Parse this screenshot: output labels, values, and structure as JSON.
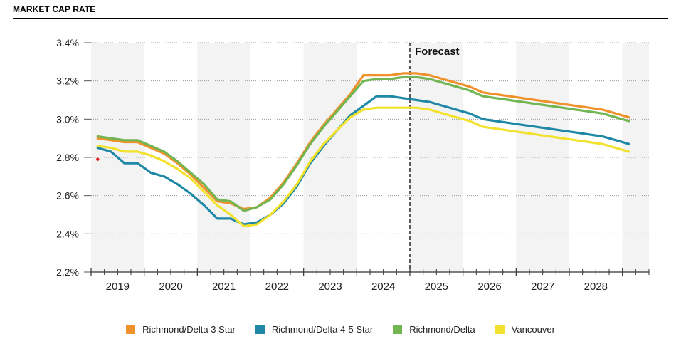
{
  "header": {
    "title": "MARKET CAP RATE"
  },
  "chart_data": {
    "type": "line",
    "title": "MARKET CAP RATE",
    "annotation": "Forecast",
    "ylim": [
      2.2,
      3.4
    ],
    "yticks": [
      2.2,
      2.4,
      2.6,
      2.8,
      3.0,
      3.2,
      3.4
    ],
    "ytick_labels": [
      "2.2%",
      "2.4%",
      "2.6%",
      "2.8%",
      "3.0%",
      "3.2%",
      "3.4%"
    ],
    "xlim": [
      2018.5,
      2029.0
    ],
    "years": [
      "2019",
      "2020",
      "2021",
      "2022",
      "2023",
      "2024",
      "2025",
      "2026",
      "2027",
      "2028"
    ],
    "forecast_x": 2024.5,
    "series": [
      {
        "name": "Richmond/Delta 3 Star",
        "color": "#f0912b",
        "x": [
          2018.625,
          2018.875,
          2019.125,
          2019.375,
          2019.625,
          2019.875,
          2020.125,
          2020.375,
          2020.625,
          2020.875,
          2021.125,
          2021.375,
          2021.625,
          2021.875,
          2022.125,
          2022.375,
          2022.625,
          2022.875,
          2023.125,
          2023.375,
          2023.625,
          2023.875,
          2024.125,
          2024.375,
          2024.625,
          2024.875,
          2025.125,
          2025.375,
          2025.625,
          2025.875,
          2026.125,
          2026.375,
          2026.625,
          2026.875,
          2027.125,
          2027.375,
          2027.625,
          2027.875,
          2028.125,
          2028.375,
          2028.625
        ],
        "y": [
          2.9,
          2.89,
          2.88,
          2.88,
          2.85,
          2.82,
          2.77,
          2.71,
          2.64,
          2.57,
          2.56,
          2.53,
          2.54,
          2.59,
          2.67,
          2.77,
          2.88,
          2.97,
          3.05,
          3.13,
          3.23,
          3.23,
          3.23,
          3.24,
          3.24,
          3.23,
          3.21,
          3.19,
          3.17,
          3.14,
          3.13,
          3.12,
          3.11,
          3.1,
          3.09,
          3.08,
          3.07,
          3.06,
          3.05,
          3.03,
          3.01
        ]
      },
      {
        "name": "Richmond/Delta 4-5 Star",
        "color": "#1f88a6",
        "x": [
          2018.625,
          2018.875,
          2019.125,
          2019.375,
          2019.625,
          2019.875,
          2020.125,
          2020.375,
          2020.625,
          2020.875,
          2021.125,
          2021.375,
          2021.625,
          2021.875,
          2022.125,
          2022.375,
          2022.625,
          2022.875,
          2023.125,
          2023.375,
          2023.625,
          2023.875,
          2024.125,
          2024.375,
          2024.625,
          2024.875,
          2025.125,
          2025.375,
          2025.625,
          2025.875,
          2026.125,
          2026.375,
          2026.625,
          2026.875,
          2027.125,
          2027.375,
          2027.625,
          2027.875,
          2028.125,
          2028.375,
          2028.625
        ],
        "y": [
          2.85,
          2.83,
          2.77,
          2.77,
          2.72,
          2.7,
          2.66,
          2.61,
          2.55,
          2.48,
          2.48,
          2.45,
          2.46,
          2.5,
          2.56,
          2.65,
          2.77,
          2.86,
          2.94,
          3.02,
          3.07,
          3.12,
          3.12,
          3.11,
          3.1,
          3.09,
          3.07,
          3.05,
          3.03,
          3.0,
          2.99,
          2.98,
          2.97,
          2.96,
          2.95,
          2.94,
          2.93,
          2.92,
          2.91,
          2.89,
          2.87
        ]
      },
      {
        "name": "Richmond/Delta",
        "color": "#72b553",
        "x": [
          2018.625,
          2018.875,
          2019.125,
          2019.375,
          2019.625,
          2019.875,
          2020.125,
          2020.375,
          2020.625,
          2020.875,
          2021.125,
          2021.375,
          2021.625,
          2021.875,
          2022.125,
          2022.375,
          2022.625,
          2022.875,
          2023.125,
          2023.375,
          2023.625,
          2023.875,
          2024.125,
          2024.375,
          2024.625,
          2024.875,
          2025.125,
          2025.375,
          2025.625,
          2025.875,
          2026.125,
          2026.375,
          2026.625,
          2026.875,
          2027.125,
          2027.375,
          2027.625,
          2027.875,
          2028.125,
          2028.375,
          2028.625
        ],
        "y": [
          2.91,
          2.9,
          2.89,
          2.89,
          2.86,
          2.83,
          2.78,
          2.72,
          2.66,
          2.58,
          2.57,
          2.52,
          2.54,
          2.58,
          2.66,
          2.76,
          2.87,
          2.96,
          3.04,
          3.12,
          3.2,
          3.21,
          3.21,
          3.22,
          3.22,
          3.21,
          3.19,
          3.17,
          3.15,
          3.12,
          3.11,
          3.1,
          3.09,
          3.08,
          3.07,
          3.06,
          3.05,
          3.04,
          3.03,
          3.01,
          2.99
        ]
      },
      {
        "name": "Vancouver",
        "color": "#f2e12d",
        "x": [
          2018.625,
          2018.875,
          2019.125,
          2019.375,
          2019.625,
          2019.875,
          2020.125,
          2020.375,
          2020.625,
          2020.875,
          2021.125,
          2021.375,
          2021.625,
          2021.875,
          2022.125,
          2022.375,
          2022.625,
          2022.875,
          2023.125,
          2023.375,
          2023.625,
          2023.875,
          2024.125,
          2024.375,
          2024.625,
          2024.875,
          2025.125,
          2025.375,
          2025.625,
          2025.875,
          2026.125,
          2026.375,
          2026.625,
          2026.875,
          2027.125,
          2027.375,
          2027.625,
          2027.875,
          2028.125,
          2028.375,
          2028.625
        ],
        "y": [
          2.86,
          2.85,
          2.83,
          2.83,
          2.81,
          2.78,
          2.74,
          2.69,
          2.62,
          2.55,
          2.5,
          2.44,
          2.45,
          2.5,
          2.57,
          2.66,
          2.78,
          2.87,
          2.94,
          3.01,
          3.05,
          3.06,
          3.06,
          3.06,
          3.06,
          3.05,
          3.03,
          3.01,
          2.99,
          2.96,
          2.95,
          2.94,
          2.93,
          2.92,
          2.91,
          2.9,
          2.89,
          2.88,
          2.87,
          2.85,
          2.83
        ]
      }
    ],
    "point": {
      "x": 2018.625,
      "y": 2.79,
      "color": "#e02020"
    },
    "legend_position": "bottom"
  }
}
